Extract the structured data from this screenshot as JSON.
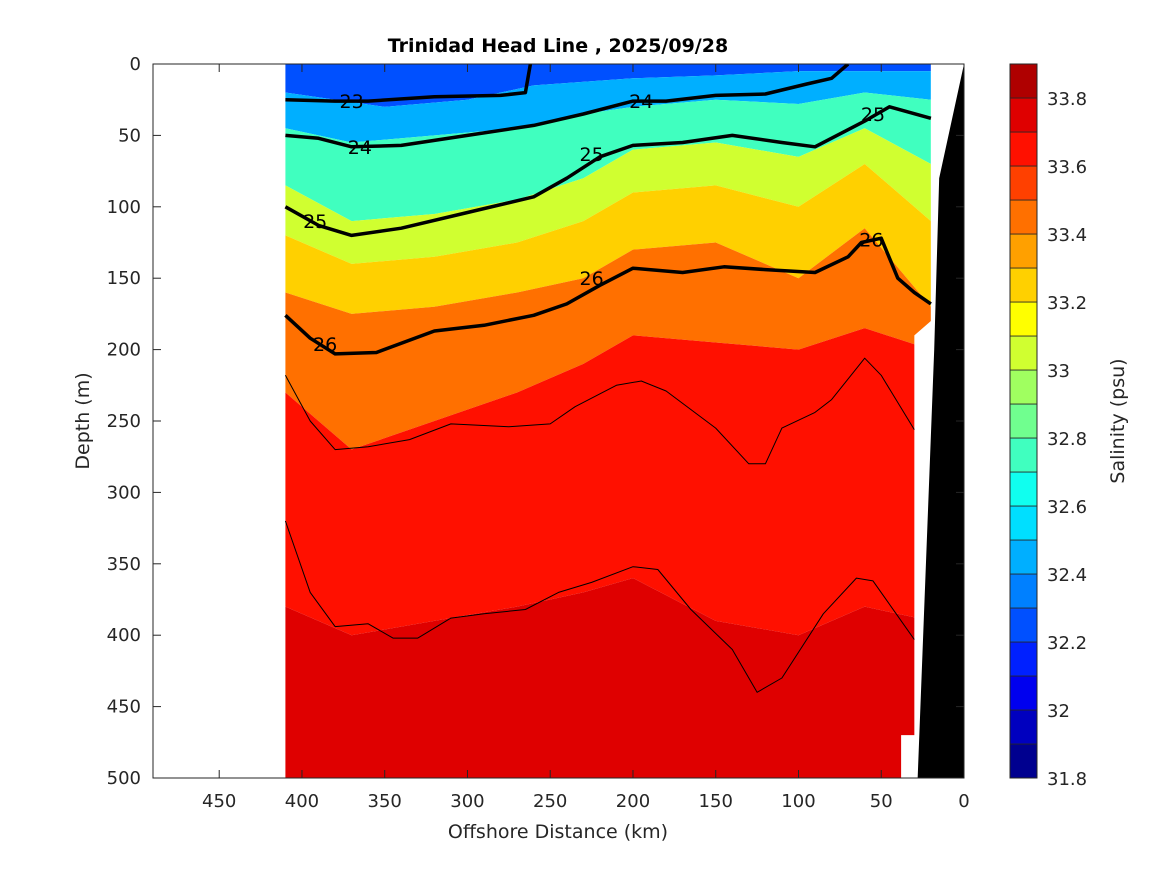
{
  "chart_data": {
    "type": "heatmap",
    "subtype": "filled-contour section",
    "title": "Trinidad Head Line , 2025/09/28",
    "xlabel": "Offshore Distance (km)",
    "ylabel": "Depth (m)",
    "xlim": [
      490,
      0
    ],
    "ylim": [
      0,
      500
    ],
    "x_reversed": true,
    "y_reversed": true,
    "xticks": [
      450,
      400,
      350,
      300,
      250,
      200,
      150,
      100,
      50,
      0
    ],
    "xtick_labels": [
      "450",
      "400",
      "350",
      "300",
      "250",
      "200",
      "150",
      "100",
      "50",
      "0"
    ],
    "yticks": [
      0,
      50,
      100,
      150,
      200,
      250,
      300,
      350,
      400,
      450,
      500
    ],
    "ytick_labels": [
      "0",
      "50",
      "100",
      "150",
      "200",
      "250",
      "300",
      "350",
      "400",
      "450",
      "500"
    ],
    "grid": false,
    "data_extent_km": [
      410,
      20
    ],
    "colorbar": {
      "label": "Salinity (psu)",
      "range": [
        31.8,
        33.9
      ],
      "step": 0.1,
      "ticks": [
        31.8,
        32,
        32.2,
        32.4,
        32.6,
        32.8,
        33,
        33.2,
        33.4,
        33.6,
        33.8
      ],
      "tick_labels": [
        "31.8",
        "32",
        "32.2",
        "32.4",
        "32.6",
        "32.8",
        "33",
        "33.2",
        "33.4",
        "33.6",
        "33.8"
      ],
      "colors": [
        "#00008f",
        "#0000bf",
        "#0000ef",
        "#0020ff",
        "#0050ff",
        "#0080ff",
        "#00afff",
        "#00dfff",
        "#10ffef",
        "#40ffbf",
        "#70ff8f",
        "#a0ff60",
        "#d0ff30",
        "#ffff00",
        "#ffd000",
        "#ffa000",
        "#ff7000",
        "#ff4000",
        "#ff1000",
        "#df0000",
        "#af0000"
      ]
    },
    "salinity_bands": [
      {
        "name": "surface-fresh",
        "value": 32.2,
        "top": [
          [
            410,
            0
          ],
          [
            20,
            0
          ]
        ],
        "bottom": [
          [
            410,
            20
          ],
          [
            350,
            30
          ],
          [
            300,
            25
          ],
          [
            260,
            15
          ],
          [
            200,
            10
          ],
          [
            150,
            8
          ],
          [
            100,
            5
          ],
          [
            20,
            5
          ]
        ]
      },
      {
        "name": "upper",
        "value": 32.45,
        "bottom": [
          [
            410,
            45
          ],
          [
            370,
            55
          ],
          [
            320,
            50
          ],
          [
            270,
            45
          ],
          [
            230,
            35
          ],
          [
            200,
            30
          ],
          [
            150,
            25
          ],
          [
            100,
            28
          ],
          [
            60,
            20
          ],
          [
            20,
            25
          ]
        ]
      },
      {
        "name": "mid-upper",
        "value": 32.7,
        "bottom": [
          [
            410,
            85
          ],
          [
            370,
            110
          ],
          [
            320,
            105
          ],
          [
            270,
            95
          ],
          [
            230,
            80
          ],
          [
            200,
            60
          ],
          [
            150,
            55
          ],
          [
            100,
            65
          ],
          [
            60,
            45
          ],
          [
            20,
            70
          ]
        ]
      },
      {
        "name": "mid",
        "value": 33.0,
        "bottom": [
          [
            410,
            120
          ],
          [
            370,
            140
          ],
          [
            320,
            135
          ],
          [
            270,
            125
          ],
          [
            230,
            110
          ],
          [
            200,
            90
          ],
          [
            150,
            85
          ],
          [
            100,
            100
          ],
          [
            60,
            70
          ],
          [
            20,
            110
          ]
        ]
      },
      {
        "name": "halocline",
        "value": 33.25,
        "bottom": [
          [
            410,
            160
          ],
          [
            370,
            175
          ],
          [
            320,
            170
          ],
          [
            270,
            160
          ],
          [
            230,
            150
          ],
          [
            200,
            130
          ],
          [
            150,
            125
          ],
          [
            100,
            150
          ],
          [
            60,
            115
          ],
          [
            20,
            170
          ]
        ]
      },
      {
        "name": "lower",
        "value": 33.45,
        "bottom": [
          [
            410,
            230
          ],
          [
            370,
            270
          ],
          [
            320,
            250
          ],
          [
            270,
            230
          ],
          [
            230,
            210
          ],
          [
            200,
            190
          ],
          [
            150,
            195
          ],
          [
            100,
            200
          ],
          [
            60,
            185
          ],
          [
            20,
            200
          ]
        ]
      },
      {
        "name": "deep",
        "value": 33.6,
        "bottom": [
          [
            410,
            380
          ],
          [
            370,
            400
          ],
          [
            320,
            390
          ],
          [
            270,
            380
          ],
          [
            230,
            370
          ],
          [
            200,
            360
          ],
          [
            150,
            390
          ],
          [
            100,
            400
          ],
          [
            60,
            380
          ],
          [
            20,
            390
          ]
        ]
      },
      {
        "name": "deepest",
        "value": 33.7,
        "bottom": [
          [
            410,
            500
          ],
          [
            20,
            500
          ]
        ]
      }
    ],
    "density_contours": [
      {
        "label": "23",
        "bold": true,
        "points": [
          [
            410,
            25
          ],
          [
            380,
            26
          ],
          [
            360,
            26
          ],
          [
            320,
            23
          ],
          [
            280,
            22
          ],
          [
            265,
            20
          ],
          [
            262,
            0
          ]
        ]
      },
      {
        "label": "24",
        "bold": true,
        "points": [
          [
            410,
            50
          ],
          [
            390,
            52
          ],
          [
            370,
            58
          ],
          [
            340,
            57
          ],
          [
            300,
            50
          ],
          [
            260,
            43
          ],
          [
            230,
            35
          ],
          [
            200,
            26
          ],
          [
            180,
            26
          ],
          [
            150,
            22
          ],
          [
            120,
            21
          ],
          [
            95,
            14
          ],
          [
            80,
            10
          ],
          [
            70,
            0
          ]
        ]
      },
      {
        "label": "25",
        "bold": true,
        "points": [
          [
            410,
            100
          ],
          [
            390,
            113
          ],
          [
            370,
            120
          ],
          [
            340,
            115
          ],
          [
            300,
            104
          ],
          [
            260,
            93
          ],
          [
            240,
            80
          ],
          [
            220,
            65
          ],
          [
            200,
            57
          ],
          [
            170,
            55
          ],
          [
            140,
            50
          ],
          [
            110,
            55
          ],
          [
            90,
            58
          ],
          [
            60,
            40
          ],
          [
            45,
            30
          ],
          [
            20,
            38
          ]
        ]
      },
      {
        "label": "26",
        "bold": true,
        "points": [
          [
            410,
            176
          ],
          [
            395,
            192
          ],
          [
            380,
            203
          ],
          [
            355,
            202
          ],
          [
            320,
            187
          ],
          [
            290,
            183
          ],
          [
            260,
            176
          ],
          [
            240,
            168
          ],
          [
            220,
            155
          ],
          [
            200,
            143
          ],
          [
            170,
            146
          ],
          [
            145,
            142
          ],
          [
            120,
            144
          ],
          [
            90,
            146
          ],
          [
            70,
            135
          ],
          [
            62,
            125
          ],
          [
            50,
            122
          ],
          [
            40,
            150
          ],
          [
            30,
            160
          ],
          [
            20,
            168
          ]
        ]
      },
      {
        "label": "",
        "bold": false,
        "points": [
          [
            410,
            218
          ],
          [
            395,
            250
          ],
          [
            380,
            270
          ],
          [
            360,
            268
          ],
          [
            335,
            263
          ],
          [
            310,
            252
          ],
          [
            275,
            254
          ],
          [
            250,
            252
          ],
          [
            235,
            240
          ],
          [
            210,
            225
          ],
          [
            195,
            222
          ],
          [
            180,
            229
          ],
          [
            150,
            255
          ],
          [
            130,
            280
          ],
          [
            120,
            280
          ],
          [
            110,
            255
          ],
          [
            90,
            244
          ],
          [
            80,
            235
          ],
          [
            60,
            206
          ],
          [
            50,
            218
          ],
          [
            30,
            256
          ]
        ]
      },
      {
        "label": "",
        "bold": false,
        "points": [
          [
            410,
            320
          ],
          [
            395,
            370
          ],
          [
            380,
            394
          ],
          [
            360,
            392
          ],
          [
            345,
            402
          ],
          [
            330,
            402
          ],
          [
            310,
            388
          ],
          [
            290,
            385
          ],
          [
            265,
            382
          ],
          [
            245,
            370
          ],
          [
            225,
            363
          ],
          [
            200,
            352
          ],
          [
            185,
            354
          ],
          [
            165,
            382
          ],
          [
            140,
            410
          ],
          [
            125,
            440
          ],
          [
            110,
            430
          ],
          [
            85,
            385
          ],
          [
            65,
            360
          ],
          [
            55,
            362
          ],
          [
            30,
            403
          ]
        ]
      }
    ],
    "bathymetry": {
      "color": "#000000",
      "points": [
        [
          28,
          500
        ],
        [
          18,
          200
        ],
        [
          15,
          80
        ],
        [
          0,
          0
        ],
        [
          0,
          500
        ]
      ]
    },
    "contour_labels": [
      {
        "text": "23",
        "x": 370,
        "y": 26
      },
      {
        "text": "24",
        "x": 365,
        "y": 58
      },
      {
        "text": "24",
        "x": 195,
        "y": 26
      },
      {
        "text": "25",
        "x": 392,
        "y": 110
      },
      {
        "text": "25",
        "x": 225,
        "y": 63
      },
      {
        "text": "25",
        "x": 55,
        "y": 35
      },
      {
        "text": "26",
        "x": 386,
        "y": 196
      },
      {
        "text": "26",
        "x": 225,
        "y": 150
      },
      {
        "text": "26",
        "x": 56,
        "y": 123
      }
    ]
  }
}
